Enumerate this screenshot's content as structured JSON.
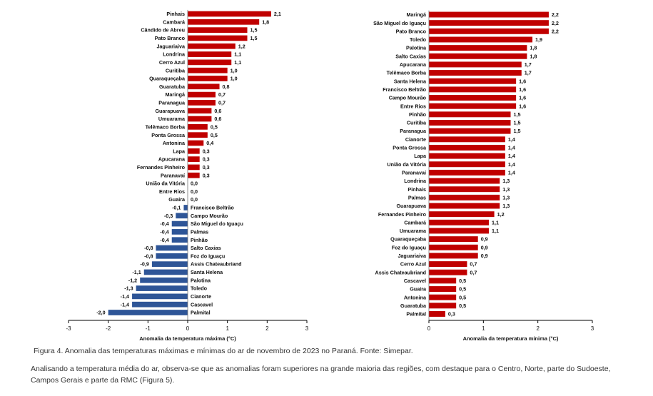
{
  "colors": {
    "positive": "#c00000",
    "negative": "#2e5597",
    "axis": "#000000"
  },
  "chart_data": [
    {
      "type": "bar",
      "orientation": "horizontal",
      "xlabel": "Anomalia da temperatura máxima (°C)",
      "xlim": [
        -3,
        3
      ],
      "xticks": [
        -3,
        -2,
        -1,
        0,
        1,
        2,
        3
      ],
      "categories": [
        "Pinhais",
        "Cambará",
        "Cândido de Abreu",
        "Pato Branco",
        "Jaguariaiva",
        "Londrina",
        "Cerro Azul",
        "Curitiba",
        "Quaraqueçaba",
        "Guaratuba",
        "Maringá",
        "Paranagua",
        "Guarapuava",
        "Umuarama",
        "Telêmaco Borba",
        "Ponta Grossa",
        "Antonina",
        "Lapa",
        "Apucarana",
        "Fernandes Pinheiro",
        "Paranavaí",
        "União da Vitória",
        "Entre Rios",
        "Guaira",
        "Francisco Beltrão",
        "Campo Mourão",
        "São Miguel do Iguaçu",
        "Palmas",
        "Pinhão",
        "Salto Caxias",
        "Foz do Iguaçu",
        "Assis Chateaubriand",
        "Santa Helena",
        "Palotina",
        "Toledo",
        "Cianorte",
        "Cascavel",
        "Palmital"
      ],
      "values": [
        2.1,
        1.8,
        1.5,
        1.5,
        1.2,
        1.1,
        1.1,
        1.0,
        1.0,
        0.8,
        0.7,
        0.7,
        0.6,
        0.6,
        0.5,
        0.5,
        0.4,
        0.3,
        0.3,
        0.3,
        0.3,
        0.0,
        0.0,
        0.0,
        -0.1,
        -0.3,
        -0.4,
        -0.4,
        -0.4,
        -0.8,
        -0.8,
        -0.9,
        -1.1,
        -1.2,
        -1.3,
        -1.4,
        -1.4,
        -2.0
      ],
      "labels": [
        "2,1",
        "1,8",
        "1,5",
        "1,5",
        "1,2",
        "1,1",
        "1,1",
        "1,0",
        "1,0",
        "0,8",
        "0,7",
        "0,7",
        "0,6",
        "0,6",
        "0,5",
        "0,5",
        "0,4",
        "0,3",
        "0,3",
        "0,3",
        "0,3",
        "0,0",
        "0,0",
        "0,0",
        "-0,1",
        "-0,3",
        "-0,4",
        "-0,4",
        "-0,4",
        "-0,8",
        "-0,8",
        "-0,9",
        "-1,1",
        "-1,2",
        "-1,3",
        "-1,4",
        "-1,4",
        "-2,0"
      ]
    },
    {
      "type": "bar",
      "orientation": "horizontal",
      "xlabel": "Anomalia da temperatura mínima (°C)",
      "xlim": [
        0,
        3
      ],
      "xticks": [
        0,
        1,
        2,
        3
      ],
      "categories": [
        "Maringá",
        "São Miguel do Iguaçu",
        "Pato Branco",
        "Toledo",
        "Palotina",
        "Salto Caxias",
        "Apucarana",
        "Telêmaco Borba",
        "Santa Helena",
        "Francisco Beltrão",
        "Campo Mourão",
        "Entre Rios",
        "Pinhão",
        "Curitiba",
        "Paranagua",
        "Cianorte",
        "Ponta Grossa",
        "Lapa",
        "União da Vitória",
        "Paranavaí",
        "Londrina",
        "Pinhais",
        "Palmas",
        "Guarapuava",
        "Fernandes Pinheiro",
        "Cambará",
        "Umuarama",
        "Quaraqueçaba",
        "Foz do Iguaçu",
        "Jaguariaiva",
        "Cerro Azul",
        "Assis Chateaubriand",
        "Cascavel",
        "Guaira",
        "Antonina",
        "Guaratuba",
        "Palmital"
      ],
      "values": [
        2.2,
        2.2,
        2.2,
        1.9,
        1.8,
        1.8,
        1.7,
        1.7,
        1.6,
        1.6,
        1.6,
        1.6,
        1.5,
        1.5,
        1.5,
        1.4,
        1.4,
        1.4,
        1.4,
        1.4,
        1.3,
        1.3,
        1.3,
        1.3,
        1.2,
        1.1,
        1.1,
        0.9,
        0.9,
        0.9,
        0.7,
        0.7,
        0.5,
        0.5,
        0.5,
        0.5,
        0.3
      ],
      "labels": [
        "2,2",
        "2,2",
        "2,2",
        "1,9",
        "1,8",
        "1,8",
        "1,7",
        "1,7",
        "1,6",
        "1,6",
        "1,6",
        "1,6",
        "1,5",
        "1,5",
        "1,5",
        "1,4",
        "1,4",
        "1,4",
        "1,4",
        "1,4",
        "1,3",
        "1,3",
        "1,3",
        "1,3",
        "1,2",
        "1,1",
        "1,1",
        "0,9",
        "0,9",
        "0,9",
        "0,7",
        "0,7",
        "0,5",
        "0,5",
        "0,5",
        "0,5",
        "0,3"
      ]
    }
  ],
  "caption": "Figura 4. Anomalia das temperaturas máximas e mínimas do ar de novembro de 2023 no Paraná. Fonte: Simepar.",
  "paragraph": "Analisando a temperatura média do ar, observa-se que as anomalias foram superiores na grande maioria das regiões, com destaque para o Centro, Norte, parte do Sudoeste, Campos Gerais e parte da RMC (Figura 5)."
}
